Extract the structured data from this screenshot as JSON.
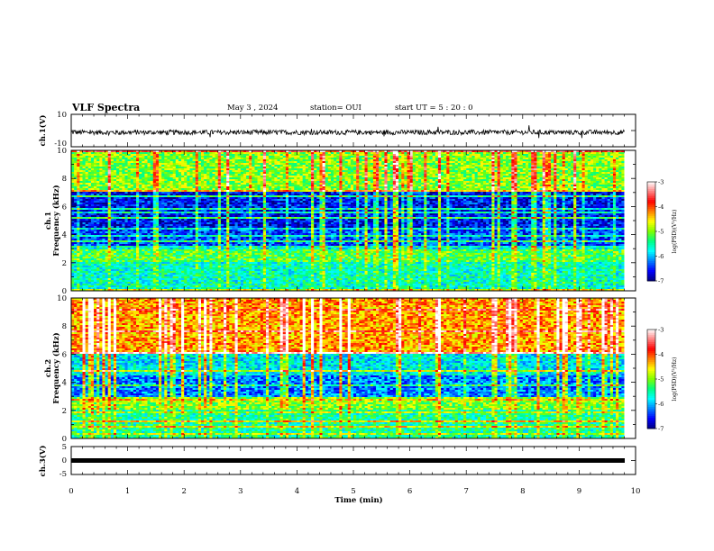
{
  "header": {
    "title": "VLF Spectra",
    "date": "May 3 , 2024",
    "station": "station= OUI",
    "start": "start UT = 5 : 20 : 0"
  },
  "chart_data": [
    {
      "type": "line",
      "panel": "ch1-waveform",
      "ylabel": "ch.1(V)",
      "ylim": [
        -10,
        10
      ],
      "yticks": [
        "10",
        "-10"
      ],
      "xlim": [
        0,
        10
      ],
      "description_series": [
        {
          "values_approx_mean": 0,
          "amplitude_approx": 1.5
        }
      ]
    },
    {
      "type": "heatmap",
      "panel": "ch1-spectrogram",
      "ylabel": "ch.1\nFrequency (kHz)",
      "ylim": [
        0,
        10
      ],
      "yticks": [
        "0",
        "2",
        "4",
        "6",
        "8",
        "10"
      ],
      "xlim": [
        0,
        9.8
      ],
      "colorbar": {
        "label": "log(PSD)(V²/Hz)",
        "range": [
          -7,
          -3
        ],
        "ticks": [
          "-3",
          "-4",
          "-5",
          "-6",
          "-7"
        ]
      },
      "bands_log_psd": [
        {
          "f": [
            0,
            2
          ],
          "level": -5.6
        },
        {
          "f": [
            2,
            3
          ],
          "level": -5.2
        },
        {
          "f": [
            3,
            4.5
          ],
          "level": -6.4
        },
        {
          "f": [
            4.5,
            7
          ],
          "level": -6.6
        },
        {
          "f": [
            7,
            10
          ],
          "level": -5.0
        }
      ]
    },
    {
      "type": "heatmap",
      "panel": "ch2-spectrogram",
      "ylabel": "ch.2\nFrequency (kHz)",
      "ylim": [
        0,
        10
      ],
      "yticks": [
        "0",
        "2",
        "4",
        "6",
        "8",
        "10"
      ],
      "xlim": [
        0,
        9.8
      ],
      "colorbar": {
        "label": "log(PSD)(V²/Hz)",
        "range": [
          -7,
          -3
        ],
        "ticks": [
          "-3",
          "-4",
          "-5",
          "-6",
          "-7"
        ]
      },
      "bands_log_psd": [
        {
          "f": [
            0,
            2
          ],
          "level": -5.5
        },
        {
          "f": [
            2,
            3
          ],
          "level": -5.0
        },
        {
          "f": [
            3,
            4.5
          ],
          "level": -6.2
        },
        {
          "f": [
            4.5,
            6
          ],
          "level": -5.8
        },
        {
          "f": [
            6,
            10
          ],
          "level": -4.3
        }
      ]
    },
    {
      "type": "line",
      "panel": "ch3-waveform",
      "ylabel": "ch.3(V)",
      "ylim": [
        -5,
        5
      ],
      "yticks": [
        "5",
        "0",
        "-5"
      ],
      "xlim": [
        0,
        10
      ],
      "xlabel": "Time (min)",
      "xticks": [
        "0",
        "1",
        "2",
        "3",
        "4",
        "5",
        "6",
        "7",
        "8",
        "9",
        "10"
      ],
      "description_series": [
        {
          "values_approx_mean": -1,
          "amplitude_approx": 0.3
        }
      ]
    }
  ],
  "colors": {
    "colormap": [
      "#000080",
      "#0000ff",
      "#0080ff",
      "#00ffff",
      "#00ff80",
      "#80ff00",
      "#ffff00",
      "#ff8000",
      "#ff0000",
      "#ff8080",
      "#ffffff"
    ],
    "line": "#000000"
  }
}
